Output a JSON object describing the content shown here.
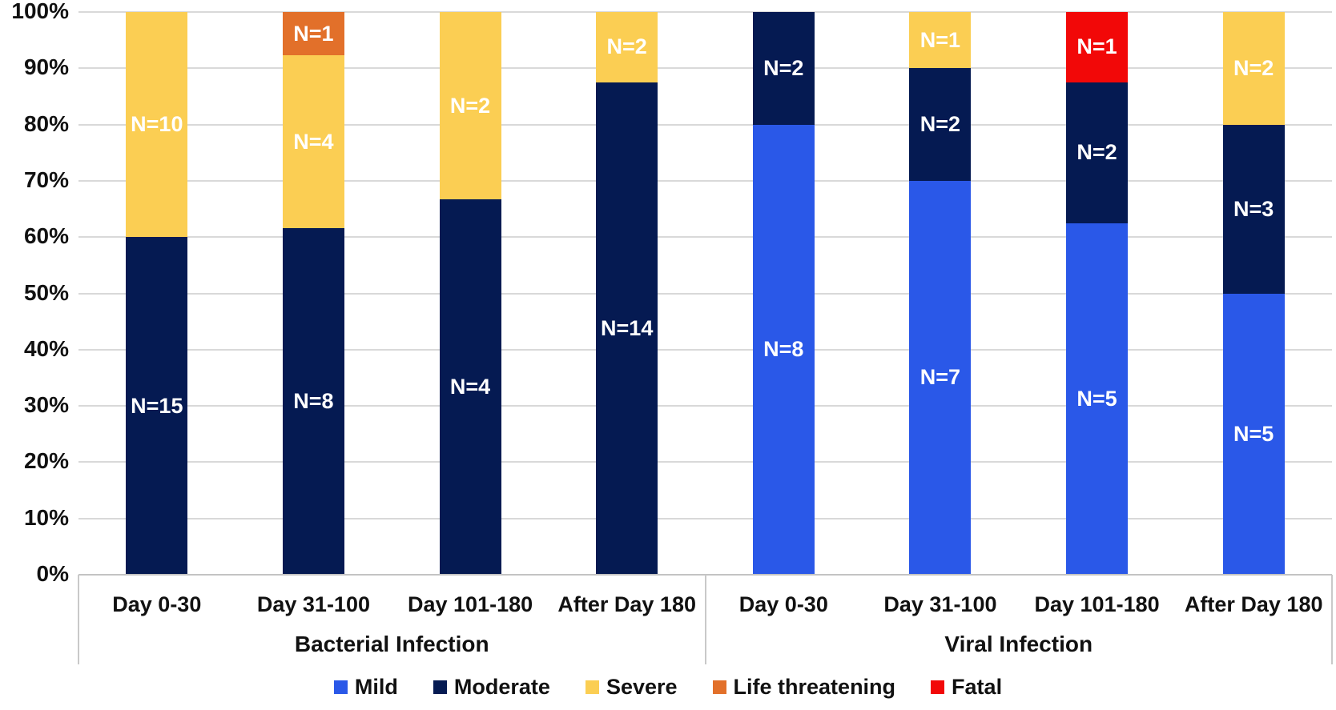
{
  "chart_data": {
    "type": "bar",
    "subtype": "100-percent-stacked-column",
    "title": "",
    "xlabel": "",
    "ylabel": "",
    "grid": "horizontal",
    "series": [
      {
        "name": "Mild",
        "color": "#2A58E8"
      },
      {
        "name": "Moderate",
        "color": "#051A52"
      },
      {
        "name": "Severe",
        "color": "#FBCE53"
      },
      {
        "name": "Life threatening",
        "color": "#E2702A"
      },
      {
        "name": "Fatal",
        "color": "#F20808"
      }
    ],
    "y_axis": {
      "min": 0,
      "max": 100,
      "unit": "%",
      "ticks": [
        {
          "label": "0%",
          "value": 0
        },
        {
          "label": "10%",
          "value": 10
        },
        {
          "label": "20%",
          "value": 20
        },
        {
          "label": "30%",
          "value": 30
        },
        {
          "label": "40%",
          "value": 40
        },
        {
          "label": "50%",
          "value": 50
        },
        {
          "label": "60%",
          "value": 60
        },
        {
          "label": "70%",
          "value": 70
        },
        {
          "label": "80%",
          "value": 80
        },
        {
          "label": "90%",
          "value": 90
        },
        {
          "label": "100%",
          "value": 100
        }
      ]
    },
    "groups": [
      {
        "label": "Bacterial Infection",
        "bars": [
          {
            "category": "Day 0-30",
            "segments": [
              {
                "series": "Moderate",
                "count": 15,
                "label": "N=15",
                "pct": 60.0
              },
              {
                "series": "Severe",
                "count": 10,
                "label": "N=10",
                "pct": 40.0
              }
            ]
          },
          {
            "category": "Day 31-100",
            "segments": [
              {
                "series": "Moderate",
                "count": 8,
                "label": "N=8",
                "pct": 61.54
              },
              {
                "series": "Severe",
                "count": 4,
                "label": "N=4",
                "pct": 30.77
              },
              {
                "series": "Life threatening",
                "count": 1,
                "label": "N=1",
                "pct": 7.69
              }
            ]
          },
          {
            "category": "Day 101-180",
            "segments": [
              {
                "series": "Moderate",
                "count": 4,
                "label": "N=4",
                "pct": 66.67
              },
              {
                "series": "Severe",
                "count": 2,
                "label": "N=2",
                "pct": 33.33
              }
            ]
          },
          {
            "category": "After Day 180",
            "segments": [
              {
                "series": "Moderate",
                "count": 14,
                "label": "N=14",
                "pct": 87.5
              },
              {
                "series": "Severe",
                "count": 2,
                "label": "N=2",
                "pct": 12.5
              }
            ]
          }
        ]
      },
      {
        "label": "Viral Infection",
        "bars": [
          {
            "category": "Day 0-30",
            "segments": [
              {
                "series": "Mild",
                "count": 8,
                "label": "N=8",
                "pct": 80.0
              },
              {
                "series": "Moderate",
                "count": 2,
                "label": "N=2",
                "pct": 20.0
              }
            ]
          },
          {
            "category": "Day 31-100",
            "segments": [
              {
                "series": "Mild",
                "count": 7,
                "label": "N=7",
                "pct": 70.0
              },
              {
                "series": "Moderate",
                "count": 2,
                "label": "N=2",
                "pct": 20.0
              },
              {
                "series": "Severe",
                "count": 1,
                "label": "N=1",
                "pct": 10.0
              }
            ]
          },
          {
            "category": "Day 101-180",
            "segments": [
              {
                "series": "Mild",
                "count": 5,
                "label": "N=5",
                "pct": 62.5
              },
              {
                "series": "Moderate",
                "count": 2,
                "label": "N=2",
                "pct": 25.0
              },
              {
                "series": "Fatal",
                "count": 1,
                "label": "N=1",
                "pct": 12.5
              }
            ]
          },
          {
            "category": "After Day 180",
            "segments": [
              {
                "series": "Mild",
                "count": 5,
                "label": "N=5",
                "pct": 50.0
              },
              {
                "series": "Moderate",
                "count": 3,
                "label": "N=3",
                "pct": 30.0
              },
              {
                "series": "Severe",
                "count": 2,
                "label": "N=2",
                "pct": 20.0
              }
            ]
          }
        ]
      }
    ],
    "legend": {
      "position": "bottom",
      "items": [
        "Mild",
        "Moderate",
        "Severe",
        "Life threatening",
        "Fatal"
      ]
    }
  }
}
